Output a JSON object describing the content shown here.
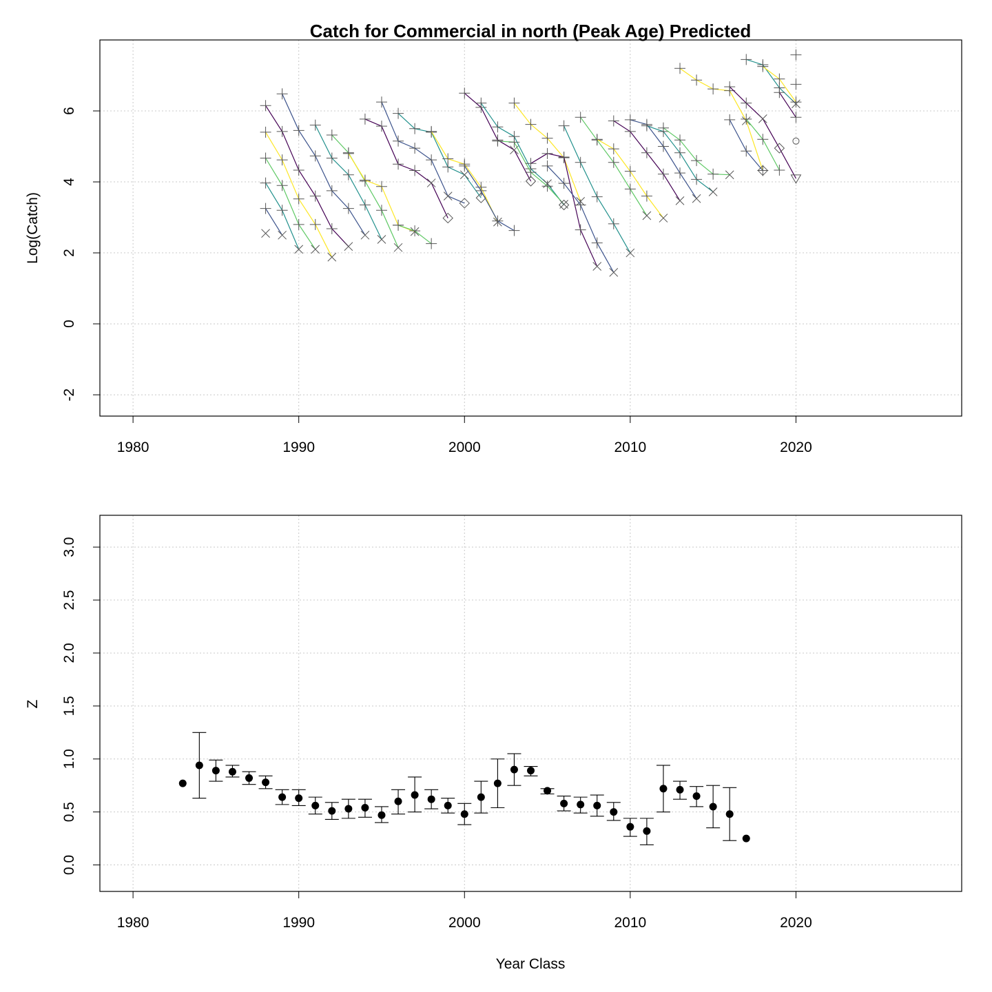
{
  "chart_data": [
    {
      "type": "line",
      "title": "Catch for Commercial in north (Peak Age) Predicted",
      "xlabel": "",
      "ylabel": "Log(Catch)",
      "xlim": [
        1978,
        2030
      ],
      "ylim": [
        -2.6,
        8.0
      ],
      "xticks": [
        "1980",
        "1990",
        "2000",
        "2010",
        "2020"
      ],
      "yticks": [
        "-2",
        "0",
        "2",
        "4",
        "6"
      ],
      "grid": true,
      "note": "Each cohort (year class) is a line of log catch over ages 4-9 against catch year; points marked by age symbol.",
      "age_symbols": [
        "plus",
        "x",
        "diamond",
        "triangle-down",
        "boxed-x",
        "triangle-up"
      ],
      "cohort_colors": [
        "#440154",
        "#3B528B",
        "#21908C",
        "#5DC863",
        "#FDE725"
      ],
      "series": [
        {
          "cohort": 1983,
          "points": [
            [
              1988,
              2.55
            ]
          ]
        },
        {
          "cohort": 1984,
          "points": [
            [
              1988,
              3.25
            ],
            [
              1989,
              2.5
            ]
          ]
        },
        {
          "cohort": 1985,
          "points": [
            [
              1988,
              3.97
            ],
            [
              1989,
              3.2
            ],
            [
              1990,
              2.1
            ]
          ]
        },
        {
          "cohort": 1986,
          "points": [
            [
              1988,
              4.67
            ],
            [
              1989,
              3.9
            ],
            [
              1990,
              2.8
            ],
            [
              1991,
              2.1
            ]
          ]
        },
        {
          "cohort": 1987,
          "points": [
            [
              1988,
              5.4
            ],
            [
              1989,
              4.62
            ],
            [
              1990,
              3.52
            ],
            [
              1991,
              2.8
            ],
            [
              1992,
              1.88
            ]
          ]
        },
        {
          "cohort": 1988,
          "points": [
            [
              1988,
              6.15
            ],
            [
              1989,
              5.42
            ],
            [
              1990,
              4.33
            ],
            [
              1991,
              3.6
            ],
            [
              1992,
              2.68
            ],
            [
              1993,
              2.18
            ]
          ]
        },
        {
          "cohort": 1989,
          "points": [
            [
              1989,
              6.48
            ],
            [
              1990,
              5.45
            ],
            [
              1991,
              4.73
            ],
            [
              1992,
              3.75
            ],
            [
              1993,
              3.25
            ],
            [
              1994,
              2.5
            ]
          ]
        },
        {
          "cohort": 1990,
          "points": [
            [
              1991,
              5.6
            ],
            [
              1992,
              4.67
            ],
            [
              1993,
              4.2
            ],
            [
              1994,
              3.35
            ],
            [
              1995,
              2.38
            ]
          ]
        },
        {
          "cohort": 1991,
          "points": [
            [
              1992,
              5.32
            ],
            [
              1993,
              4.82
            ],
            [
              1994,
              4.02
            ],
            [
              1995,
              3.2
            ],
            [
              1996,
              2.15
            ]
          ]
        },
        {
          "cohort": 1992,
          "points": [
            [
              1993,
              4.8
            ],
            [
              1994,
              4.05
            ],
            [
              1995,
              3.87
            ],
            [
              1996,
              2.78
            ],
            [
              1997,
              2.6
            ]
          ]
        },
        {
          "cohort": 1993,
          "points": [
            [
              1994,
              5.77
            ],
            [
              1995,
              5.57
            ],
            [
              1996,
              4.5
            ],
            [
              1997,
              4.32
            ],
            [
              1998,
              3.97
            ],
            [
              1999,
              2.98
            ]
          ]
        },
        {
          "cohort": 1994,
          "points": [
            [
              1995,
              6.25
            ],
            [
              1996,
              5.15
            ],
            [
              1997,
              4.95
            ],
            [
              1998,
              4.62
            ],
            [
              1999,
              3.6
            ],
            [
              2000,
              3.4
            ]
          ]
        },
        {
          "cohort": 1995,
          "points": [
            [
              1996,
              5.93
            ],
            [
              1997,
              5.5
            ],
            [
              1998,
              5.4
            ],
            [
              1999,
              4.42
            ],
            [
              2000,
              4.2
            ],
            [
              2001,
              3.55
            ]
          ]
        },
        {
          "cohort": 1996,
          "points": [
            [
              1996,
              2.78
            ],
            [
              1997,
              2.62
            ],
            [
              1998,
              2.26
            ]
          ]
        },
        {
          "cohort": 1997,
          "points": [
            [
              1998,
              5.42
            ],
            [
              1999,
              4.65
            ],
            [
              2000,
              4.5
            ],
            [
              2001,
              3.85
            ],
            [
              2002,
              2.87
            ]
          ]
        },
        {
          "cohort": 1998,
          "points": [
            [
              2000,
              6.5
            ],
            [
              2001,
              6.1
            ],
            [
              2002,
              5.18
            ],
            [
              2003,
              4.9
            ],
            [
              2004,
              4.02
            ]
          ]
        },
        {
          "cohort": 1999,
          "points": [
            [
              2000,
              4.45
            ],
            [
              2001,
              3.75
            ],
            [
              2002,
              2.9
            ],
            [
              2003,
              2.63
            ]
          ]
        },
        {
          "cohort": 2000,
          "points": [
            [
              2001,
              6.22
            ],
            [
              2002,
              5.55
            ],
            [
              2003,
              5.28
            ],
            [
              2004,
              4.37
            ],
            [
              2005,
              3.95
            ],
            [
              2006,
              3.35
            ]
          ]
        },
        {
          "cohort": 2001,
          "points": [
            [
              2002,
              5.15
            ],
            [
              2003,
              5.12
            ],
            [
              2004,
              4.27
            ],
            [
              2005,
              3.88
            ],
            [
              2006,
              3.37
            ]
          ]
        },
        {
          "cohort": 2002,
          "points": [
            [
              2003,
              6.22
            ],
            [
              2004,
              5.62
            ],
            [
              2005,
              5.23
            ],
            [
              2006,
              4.68
            ],
            [
              2007,
              3.45
            ]
          ]
        },
        {
          "cohort": 2003,
          "points": [
            [
              2004,
              4.52
            ],
            [
              2005,
              4.8
            ],
            [
              2006,
              4.7
            ],
            [
              2007,
              2.65
            ],
            [
              2008,
              1.62
            ]
          ]
        },
        {
          "cohort": 2004,
          "points": [
            [
              2005,
              4.45
            ],
            [
              2006,
              3.96
            ],
            [
              2007,
              3.35
            ],
            [
              2008,
              2.28
            ],
            [
              2009,
              1.45
            ]
          ]
        },
        {
          "cohort": 2005,
          "points": [
            [
              2006,
              5.58
            ],
            [
              2007,
              4.55
            ],
            [
              2008,
              3.58
            ],
            [
              2009,
              2.82
            ],
            [
              2010,
              2.0
            ]
          ]
        },
        {
          "cohort": 2006,
          "points": [
            [
              2007,
              5.82
            ],
            [
              2008,
              5.18
            ],
            [
              2009,
              4.55
            ],
            [
              2010,
              3.8
            ],
            [
              2011,
              3.05
            ]
          ]
        },
        {
          "cohort": 2007,
          "points": [
            [
              2008,
              5.2
            ],
            [
              2009,
              4.93
            ],
            [
              2010,
              4.3
            ],
            [
              2011,
              3.6
            ],
            [
              2012,
              2.98
            ]
          ]
        },
        {
          "cohort": 2008,
          "points": [
            [
              2009,
              5.72
            ],
            [
              2010,
              5.42
            ],
            [
              2011,
              4.82
            ],
            [
              2012,
              4.22
            ],
            [
              2013,
              3.47
            ]
          ]
        },
        {
          "cohort": 2009,
          "points": [
            [
              2010,
              5.75
            ],
            [
              2011,
              5.62
            ],
            [
              2012,
              5.0
            ],
            [
              2013,
              4.25
            ],
            [
              2014,
              3.53
            ]
          ]
        },
        {
          "cohort": 2010,
          "points": [
            [
              2011,
              5.58
            ],
            [
              2012,
              5.42
            ],
            [
              2013,
              4.82
            ],
            [
              2014,
              4.07
            ],
            [
              2015,
              3.72
            ]
          ]
        },
        {
          "cohort": 2011,
          "points": [
            [
              2012,
              5.52
            ],
            [
              2013,
              5.18
            ],
            [
              2014,
              4.6
            ],
            [
              2015,
              4.22
            ],
            [
              2016,
              4.2
            ]
          ]
        },
        {
          "cohort": 2012,
          "points": [
            [
              2013,
              7.2
            ],
            [
              2014,
              6.87
            ],
            [
              2015,
              6.62
            ],
            [
              2016,
              6.57
            ],
            [
              2017,
              5.72
            ],
            [
              2018,
              4.32
            ]
          ]
        },
        {
          "cohort": 2013,
          "points": [
            [
              2016,
              6.68
            ],
            [
              2017,
              6.22
            ],
            [
              2018,
              5.78
            ],
            [
              2019,
              4.95
            ],
            [
              2020,
              4.1
            ]
          ]
        },
        {
          "cohort": 2014,
          "points": [
            [
              2016,
              5.75
            ],
            [
              2017,
              4.87
            ],
            [
              2018,
              4.32
            ]
          ]
        },
        {
          "cohort": 2015,
          "points": [
            [
              2017,
              7.45
            ],
            [
              2018,
              7.3
            ],
            [
              2019,
              6.65
            ],
            [
              2020,
              6.2
            ]
          ]
        },
        {
          "cohort": 2016,
          "points": [
            [
              2017,
              5.77
            ],
            [
              2018,
              5.2
            ],
            [
              2019,
              4.33
            ]
          ]
        },
        {
          "cohort": 2017,
          "points": [
            [
              2018,
              7.25
            ],
            [
              2019,
              6.9
            ],
            [
              2020,
              6.25
            ]
          ]
        },
        {
          "cohort": 2018,
          "points": [
            [
              2019,
              6.52
            ],
            [
              2020,
              5.82
            ]
          ]
        },
        {
          "cohort": 2019,
          "points": [
            [
              2020,
              6.75
            ]
          ]
        },
        {
          "cohort": 2020,
          "points": [
            [
              2020,
              7.58
            ]
          ]
        }
      ],
      "extra_points": [
        [
          2020,
          5.15
        ]
      ]
    },
    {
      "type": "scatter",
      "title": "",
      "xlabel": "Year Class",
      "ylabel": "Z",
      "xlim": [
        1978,
        2030
      ],
      "ylim": [
        -0.25,
        3.3
      ],
      "xticks": [
        "1980",
        "1990",
        "2000",
        "2010",
        "2020"
      ],
      "yticks": [
        "0.0",
        "0.5",
        "1.0",
        "1.5",
        "2.0",
        "2.5",
        "3.0"
      ],
      "grid": true,
      "error_bars": true,
      "points": [
        {
          "x": 1983,
          "y": 0.77,
          "lo": null,
          "hi": null
        },
        {
          "x": 1984,
          "y": 0.94,
          "lo": 0.63,
          "hi": 1.25
        },
        {
          "x": 1985,
          "y": 0.89,
          "lo": 0.79,
          "hi": 0.99
        },
        {
          "x": 1986,
          "y": 0.88,
          "lo": 0.83,
          "hi": 0.94
        },
        {
          "x": 1987,
          "y": 0.82,
          "lo": 0.76,
          "hi": 0.88
        },
        {
          "x": 1988,
          "y": 0.78,
          "lo": 0.72,
          "hi": 0.84
        },
        {
          "x": 1989,
          "y": 0.64,
          "lo": 0.57,
          "hi": 0.71
        },
        {
          "x": 1990,
          "y": 0.63,
          "lo": 0.56,
          "hi": 0.71
        },
        {
          "x": 1991,
          "y": 0.56,
          "lo": 0.48,
          "hi": 0.64
        },
        {
          "x": 1992,
          "y": 0.51,
          "lo": 0.43,
          "hi": 0.59
        },
        {
          "x": 1993,
          "y": 0.53,
          "lo": 0.44,
          "hi": 0.62
        },
        {
          "x": 1994,
          "y": 0.54,
          "lo": 0.45,
          "hi": 0.62
        },
        {
          "x": 1995,
          "y": 0.47,
          "lo": 0.4,
          "hi": 0.55
        },
        {
          "x": 1996,
          "y": 0.6,
          "lo": 0.48,
          "hi": 0.71
        },
        {
          "x": 1997,
          "y": 0.66,
          "lo": 0.5,
          "hi": 0.83
        },
        {
          "x": 1998,
          "y": 0.62,
          "lo": 0.53,
          "hi": 0.71
        },
        {
          "x": 1999,
          "y": 0.56,
          "lo": 0.49,
          "hi": 0.63
        },
        {
          "x": 2000,
          "y": 0.48,
          "lo": 0.38,
          "hi": 0.58
        },
        {
          "x": 2001,
          "y": 0.64,
          "lo": 0.49,
          "hi": 0.79
        },
        {
          "x": 2002,
          "y": 0.77,
          "lo": 0.54,
          "hi": 1.0
        },
        {
          "x": 2003,
          "y": 0.9,
          "lo": 0.75,
          "hi": 1.05
        },
        {
          "x": 2004,
          "y": 0.89,
          "lo": 0.84,
          "hi": 0.93
        },
        {
          "x": 2005,
          "y": 0.7,
          "lo": 0.67,
          "hi": 0.72
        },
        {
          "x": 2006,
          "y": 0.58,
          "lo": 0.51,
          "hi": 0.65
        },
        {
          "x": 2007,
          "y": 0.57,
          "lo": 0.49,
          "hi": 0.64
        },
        {
          "x": 2008,
          "y": 0.56,
          "lo": 0.46,
          "hi": 0.66
        },
        {
          "x": 2009,
          "y": 0.5,
          "lo": 0.42,
          "hi": 0.59
        },
        {
          "x": 2010,
          "y": 0.36,
          "lo": 0.27,
          "hi": 0.44
        },
        {
          "x": 2011,
          "y": 0.32,
          "lo": 0.19,
          "hi": 0.44
        },
        {
          "x": 2012,
          "y": 0.72,
          "lo": 0.5,
          "hi": 0.94
        },
        {
          "x": 2013,
          "y": 0.71,
          "lo": 0.62,
          "hi": 0.79
        },
        {
          "x": 2014,
          "y": 0.65,
          "lo": 0.55,
          "hi": 0.74
        },
        {
          "x": 2015,
          "y": 0.55,
          "lo": 0.35,
          "hi": 0.75
        },
        {
          "x": 2016,
          "y": 0.48,
          "lo": 0.23,
          "hi": 0.73
        },
        {
          "x": 2017,
          "y": 0.25,
          "lo": null,
          "hi": null
        }
      ]
    }
  ]
}
